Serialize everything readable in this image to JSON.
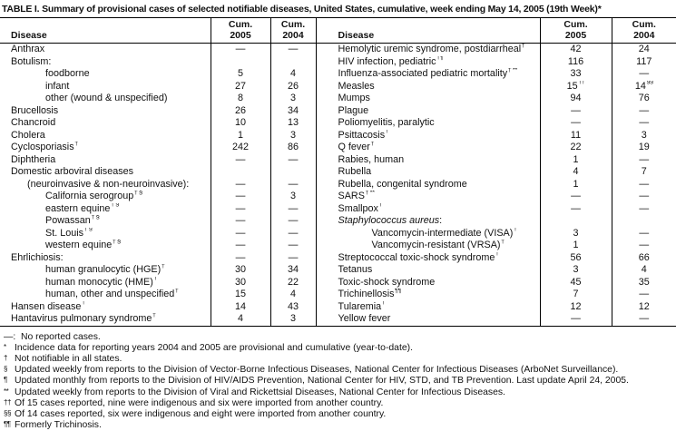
{
  "title": "TABLE I. Summary of provisional cases of selected notifiable diseases, United States, cumulative, week ending May 14, 2005 (19th Week)*",
  "header": {
    "disease": "Disease",
    "cum": "Cum.",
    "y2005": "2005",
    "y2004": "2004"
  },
  "table": {
    "left_rows": [
      {
        "name": "Anthrax",
        "indent": 0,
        "v2005": "—",
        "v2004": "—"
      },
      {
        "name": "Botulism:",
        "indent": 0,
        "v2005": "",
        "v2004": ""
      },
      {
        "name": "foodborne",
        "indent": 2,
        "v2005": "5",
        "v2004": "4"
      },
      {
        "name": "infant",
        "indent": 2,
        "v2005": "27",
        "v2004": "26"
      },
      {
        "name": "other (wound & unspecified)",
        "indent": 2,
        "v2005": "8",
        "v2004": "3"
      },
      {
        "name": "Brucellosis",
        "indent": 0,
        "v2005": "26",
        "v2004": "34"
      },
      {
        "name": "Chancroid",
        "indent": 0,
        "v2005": "10",
        "v2004": "13"
      },
      {
        "name": "Cholera",
        "indent": 0,
        "v2005": "1",
        "v2004": "3"
      },
      {
        "name": "Cyclosporiasis",
        "sup": "†",
        "indent": 0,
        "v2005": "242",
        "v2004": "86"
      },
      {
        "name": "Diphtheria",
        "indent": 0,
        "v2005": "—",
        "v2004": "—"
      },
      {
        "name": "Domestic arboviral diseases",
        "indent": 0,
        "v2005": "",
        "v2004": ""
      },
      {
        "name": "(neuroinvasive & non-neuroinvasive):",
        "indent": 1,
        "v2005": "—",
        "v2004": "—"
      },
      {
        "name": "California serogroup",
        "sup": "† §",
        "indent": 2,
        "v2005": "—",
        "v2004": "3"
      },
      {
        "name": "eastern equine",
        "sup": "† §",
        "indent": 2,
        "v2005": "—",
        "v2004": "—"
      },
      {
        "name": "Powassan",
        "sup": "† §",
        "indent": 2,
        "v2005": "—",
        "v2004": "—"
      },
      {
        "name": "St. Louis",
        "sup": "† §",
        "indent": 2,
        "v2005": "—",
        "v2004": "—"
      },
      {
        "name": "western equine",
        "sup": "† §",
        "indent": 2,
        "v2005": "—",
        "v2004": "—"
      },
      {
        "name": "Ehrlichiosis:",
        "indent": 0,
        "v2005": "—",
        "v2004": "—"
      },
      {
        "name": "human granulocytic (HGE)",
        "sup": "†",
        "indent": 2,
        "v2005": "30",
        "v2004": "34"
      },
      {
        "name": "human monocytic (HME)",
        "sup": "†",
        "indent": 2,
        "v2005": "30",
        "v2004": "22"
      },
      {
        "name": "human, other and unspecified",
        "sup": "†",
        "indent": 2,
        "v2005": "15",
        "v2004": "4"
      },
      {
        "name": "Hansen disease",
        "sup": "†",
        "indent": 0,
        "v2005": "14",
        "v2004": "43"
      },
      {
        "name": "Hantavirus pulmonary syndrome",
        "sup": "†",
        "indent": 0,
        "v2005": "4",
        "v2004": "3"
      }
    ],
    "right_rows": [
      {
        "name": "Hemolytic uremic syndrome, postdiarrheal",
        "sup": "†",
        "indent": 0,
        "v2005": "42",
        "v2004": "24"
      },
      {
        "name": "HIV infection, pediatric",
        "sup": "†¶",
        "indent": 0,
        "v2005": "116",
        "v2004": "117"
      },
      {
        "name": "Influenza-associated pediatric mortality",
        "sup": "† **",
        "indent": 0,
        "v2005": "33",
        "v2004": "—"
      },
      {
        "name": "Measles",
        "indent": 0,
        "v2005": "15",
        "s2005": "††",
        "v2004": "14",
        "s2004": "§§"
      },
      {
        "name": "Mumps",
        "indent": 0,
        "v2005": "94",
        "v2004": "76"
      },
      {
        "name": "Plague",
        "indent": 0,
        "v2005": "—",
        "v2004": "—"
      },
      {
        "name": "Poliomyelitis, paralytic",
        "indent": 0,
        "v2005": "—",
        "v2004": "—"
      },
      {
        "name": "Psittacosis",
        "sup": "†",
        "indent": 0,
        "v2005": "11",
        "v2004": "3"
      },
      {
        "name": "Q fever",
        "sup": "†",
        "indent": 0,
        "v2005": "22",
        "v2004": "19"
      },
      {
        "name": "Rabies, human",
        "indent": 0,
        "v2005": "1",
        "v2004": "—"
      },
      {
        "name": "Rubella",
        "indent": 0,
        "v2005": "4",
        "v2004": "7"
      },
      {
        "name": "Rubella, congenital syndrome",
        "indent": 0,
        "v2005": "1",
        "v2004": "—"
      },
      {
        "name": "SARS",
        "sup": "† **",
        "indent": 0,
        "v2005": "—",
        "v2004": "—"
      },
      {
        "name": "Smallpox",
        "sup": "†",
        "indent": 0,
        "v2005": "—",
        "v2004": "—"
      },
      {
        "italic_pre": "Staphylococcus aureus",
        "name": ":",
        "indent": 0,
        "v2005": "",
        "v2004": ""
      },
      {
        "name": "Vancomycin-intermediate (VISA)",
        "sup": "†",
        "indent": 2,
        "v2005": "3",
        "v2004": "—"
      },
      {
        "name": "Vancomycin-resistant (VRSA)",
        "sup": "†",
        "indent": 2,
        "v2005": "1",
        "v2004": "—"
      },
      {
        "name": "Streptococcal toxic-shock syndrome",
        "sup": "†",
        "indent": 0,
        "v2005": "56",
        "v2004": "66"
      },
      {
        "name": "Tetanus",
        "indent": 0,
        "v2005": "3",
        "v2004": "4"
      },
      {
        "name": "Toxic-shock syndrome",
        "indent": 0,
        "v2005": "45",
        "v2004": "35"
      },
      {
        "name": "Trichinellosis",
        "sup": "¶¶",
        "indent": 0,
        "v2005": "7",
        "v2004": "—"
      },
      {
        "name": "Tularemia",
        "sup": "†",
        "indent": 0,
        "v2005": "12",
        "v2004": "12"
      },
      {
        "name": "Yellow fever",
        "indent": 0,
        "v2005": "—",
        "v2004": "—"
      }
    ]
  },
  "footnotes": [
    {
      "marker": "—:",
      "sup": false,
      "text": "No reported cases."
    },
    {
      "marker": "*",
      "sup": true,
      "text": "Incidence data for reporting years 2004 and 2005 are provisional and cumulative (year-to-date)."
    },
    {
      "marker": "†",
      "sup": true,
      "text": "Not notifiable in all states."
    },
    {
      "marker": "§",
      "sup": true,
      "text": "Updated weekly from reports to the Division of Vector-Borne Infectious Diseases, National Center for Infectious Diseases (ArboNet Surveillance)."
    },
    {
      "marker": "¶",
      "sup": true,
      "text": "Updated monthly from reports to the Division of HIV/AIDS Prevention, National Center for HIV, STD, and TB Prevention. Last update April 24, 2005."
    },
    {
      "marker": "**",
      "sup": true,
      "text": "Updated weekly from reports to the Division of Viral and Rickettsial Diseases, National Center for Infectious Diseases."
    },
    {
      "marker": "††",
      "sup": true,
      "text": "Of 15 cases reported, nine were indigenous and six were imported from another country."
    },
    {
      "marker": "§§",
      "sup": true,
      "text": "Of 14 cases reported, six were indigenous and eight were imported from another country."
    },
    {
      "marker": "¶¶",
      "sup": true,
      "text": "Formerly Trichinosis."
    }
  ],
  "colors": {
    "text": "#111111",
    "background": "#ffffff",
    "border": "#000000"
  }
}
